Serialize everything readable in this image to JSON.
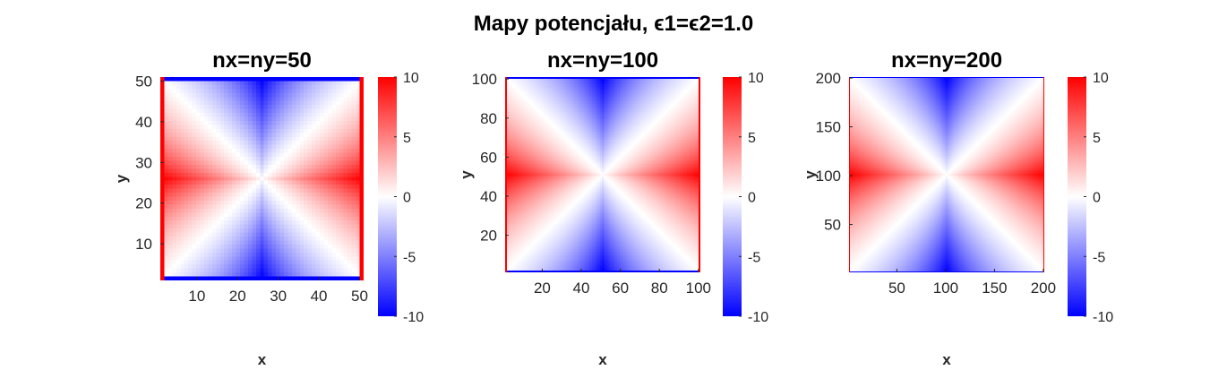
{
  "figure": {
    "title": "Mapy potencjału, ϵ1=ϵ2=1.0"
  },
  "colors": {
    "low": "#0000ff",
    "mid": "#ffffff",
    "high": "#ff0000",
    "text": "#262626"
  },
  "chart_data": [
    {
      "type": "heatmap",
      "title": "nx=ny=50",
      "xlabel": "x",
      "ylabel": "y",
      "nx": 50,
      "ny": 50,
      "xlim": [
        1,
        51
      ],
      "ylim": [
        1,
        51
      ],
      "xticks": [
        10,
        20,
        30,
        40,
        50
      ],
      "yticks": [
        10,
        20,
        30,
        40,
        50
      ],
      "clim": [
        -10,
        10
      ],
      "colorbar_ticks": [
        -10,
        -5,
        0,
        5,
        10
      ],
      "colorscale": "blue-white-red",
      "boundary": {
        "left": 10,
        "right": 10,
        "top": -10,
        "bottom": -10
      }
    },
    {
      "type": "heatmap",
      "title": "nx=ny=100",
      "xlabel": "x",
      "ylabel": "y",
      "nx": 100,
      "ny": 100,
      "xlim": [
        1,
        101
      ],
      "ylim": [
        1,
        101
      ],
      "xticks": [
        20,
        40,
        60,
        80,
        100
      ],
      "yticks": [
        20,
        40,
        60,
        80,
        100
      ],
      "clim": [
        -10,
        10
      ],
      "colorbar_ticks": [
        -10,
        -5,
        0,
        5,
        10
      ],
      "colorscale": "blue-white-red",
      "boundary": {
        "left": 10,
        "right": 10,
        "top": -10,
        "bottom": -10
      }
    },
    {
      "type": "heatmap",
      "title": "nx=ny=200",
      "xlabel": "x",
      "ylabel": "y",
      "nx": 200,
      "ny": 200,
      "xlim": [
        1,
        201
      ],
      "ylim": [
        1,
        201
      ],
      "xticks": [
        50,
        100,
        150,
        200
      ],
      "yticks": [
        50,
        100,
        150,
        200
      ],
      "clim": [
        -10,
        10
      ],
      "colorbar_ticks": [
        -10,
        -5,
        0,
        5,
        10
      ],
      "colorscale": "blue-white-red",
      "boundary": {
        "left": 10,
        "right": 10,
        "top": -10,
        "bottom": -10
      }
    }
  ]
}
